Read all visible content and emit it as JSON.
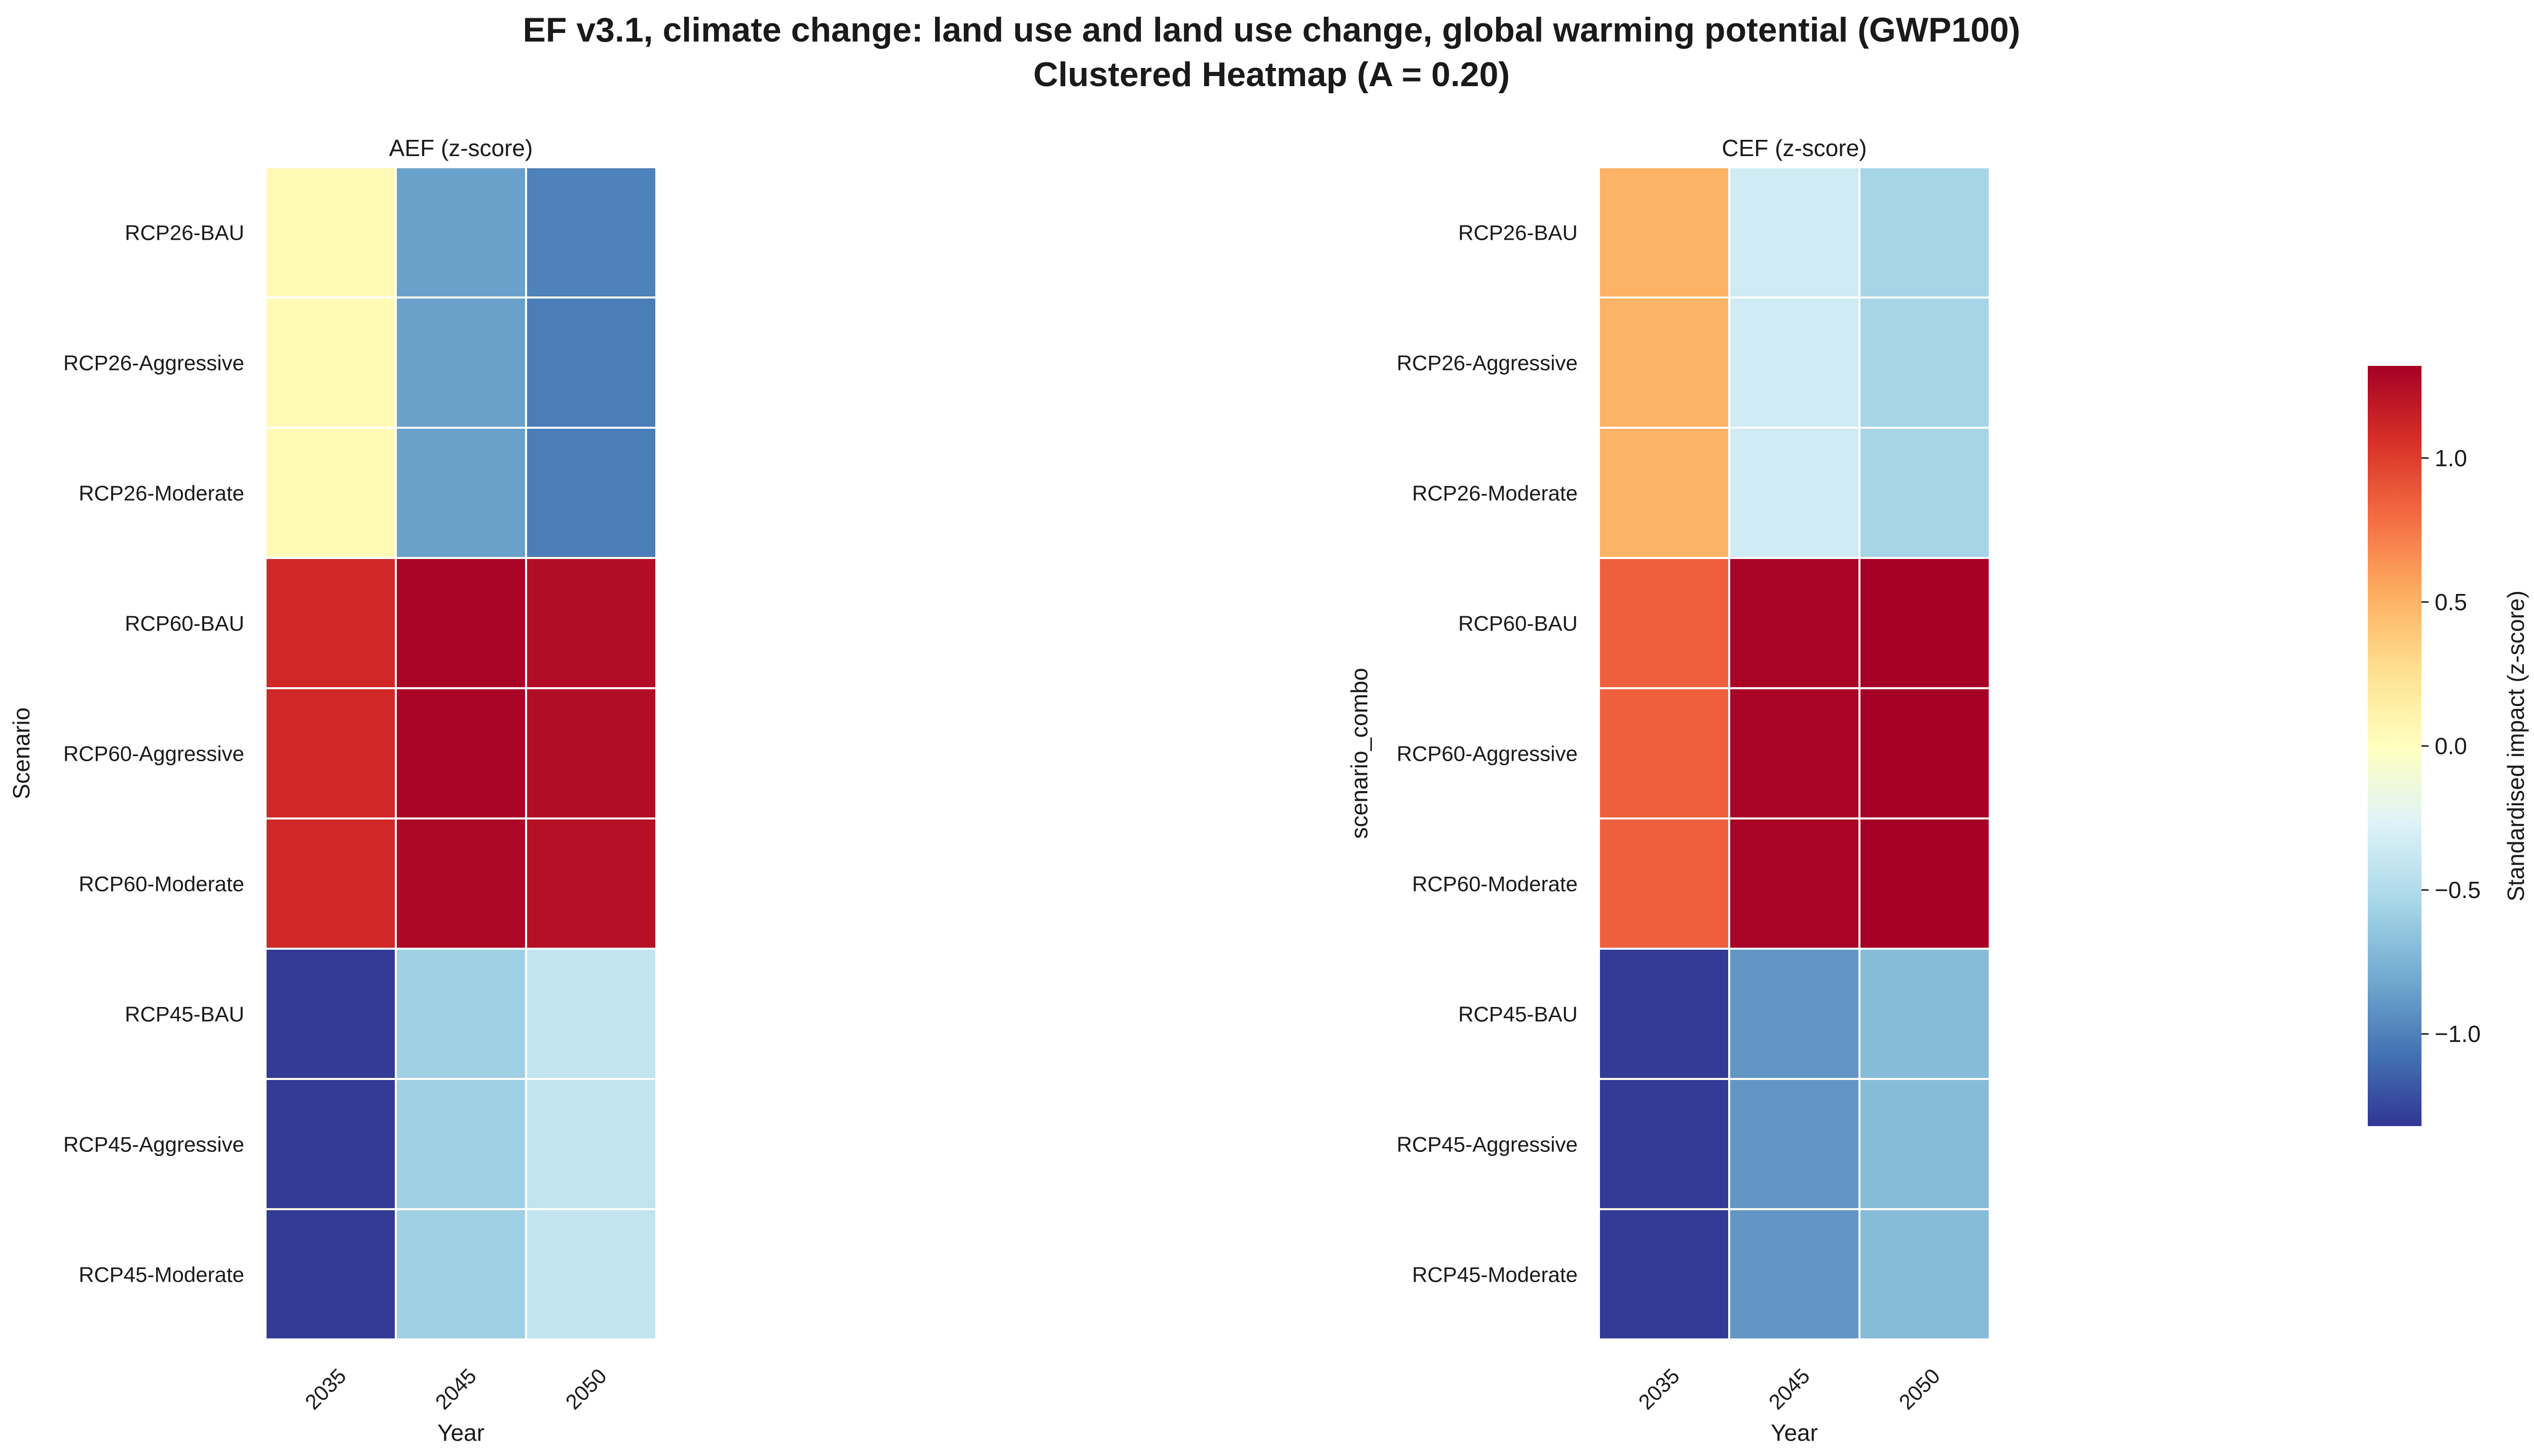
{
  "figure": {
    "title_line1": "EF v3.1, climate change: land use and land use change, global warming potential (GWP100)",
    "title_line2": "Clustered Heatmap (A = 0.20)"
  },
  "colorbar": {
    "label": "Standardised impact (z-score)",
    "vmin": -1.32,
    "vmax": 1.32,
    "ticks": [
      1.0,
      0.5,
      0.0,
      -0.5,
      -1.0
    ],
    "tick_labels": [
      "1.0",
      "0.5",
      "0.0",
      "−0.5",
      "−1.0"
    ],
    "colormap": "RdYlBu_r"
  },
  "chart_data": [
    {
      "type": "heatmap",
      "title": "AEF (z-score)",
      "xlabel": "Year",
      "ylabel": "Scenario",
      "x": [
        "2035",
        "2045",
        "2050"
      ],
      "y": [
        "RCP26-BAU",
        "RCP26-Aggressive",
        "RCP26-Moderate",
        "RCP60-BAU",
        "RCP60-Aggressive",
        "RCP60-Moderate",
        "RCP45-BAU",
        "RCP45-Aggressive",
        "RCP45-Moderate"
      ],
      "values": [
        [
          0.05,
          -0.85,
          -1.0
        ],
        [
          0.05,
          -0.85,
          -1.02
        ],
        [
          0.05,
          -0.85,
          -1.02
        ],
        [
          1.1,
          1.3,
          1.25
        ],
        [
          1.1,
          1.3,
          1.25
        ],
        [
          1.1,
          1.28,
          1.23
        ],
        [
          -1.3,
          -0.58,
          -0.42
        ],
        [
          -1.3,
          -0.58,
          -0.42
        ],
        [
          -1.3,
          -0.58,
          -0.42
        ]
      ]
    },
    {
      "type": "heatmap",
      "title": "CEF (z-score)",
      "xlabel": "Year",
      "ylabel": "scenario_combo",
      "x": [
        "2035",
        "2045",
        "2050"
      ],
      "y": [
        "RCP26-BAU",
        "RCP26-Aggressive",
        "RCP26-Moderate",
        "RCP60-BAU",
        "RCP60-Aggressive",
        "RCP60-Moderate",
        "RCP45-BAU",
        "RCP45-Aggressive",
        "RCP45-Moderate"
      ],
      "values": [
        [
          0.5,
          -0.35,
          -0.55
        ],
        [
          0.5,
          -0.35,
          -0.55
        ],
        [
          0.5,
          -0.35,
          -0.55
        ],
        [
          0.85,
          1.3,
          1.32
        ],
        [
          0.85,
          1.3,
          1.32
        ],
        [
          0.85,
          1.3,
          1.32
        ],
        [
          -1.3,
          -0.9,
          -0.7
        ],
        [
          -1.3,
          -0.9,
          -0.7
        ],
        [
          -1.3,
          -0.9,
          -0.7
        ]
      ]
    }
  ]
}
